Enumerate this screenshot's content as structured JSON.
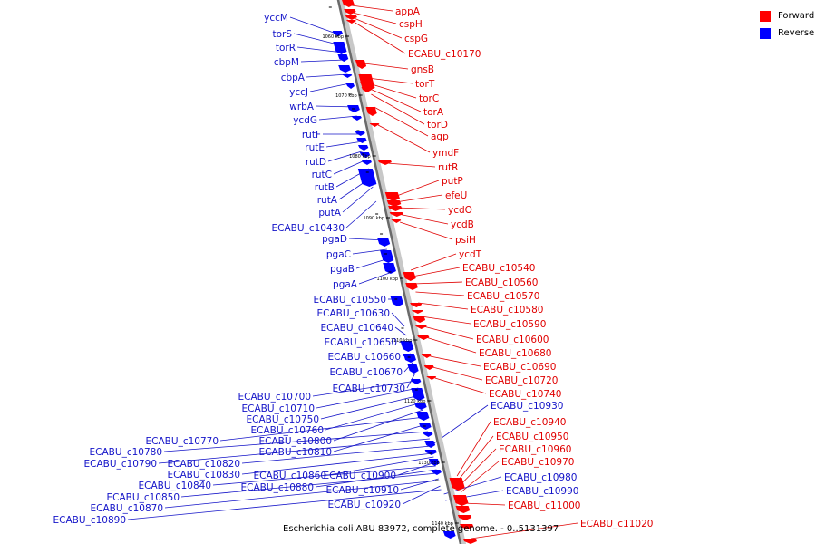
{
  "legend": {
    "forward_label": "Forward",
    "reverse_label": "Reverse",
    "forward_color": "#ff0000",
    "reverse_color": "#0000ff"
  },
  "caption": "Escherichia coli ABU 83972, complete genome. - 0..5131397",
  "kbp_markers": [
    "1060 kbp",
    "1070 kbp",
    "1080 kbp",
    "1090 kbp",
    "1100 kbp",
    "1110 kbp",
    "1120 kbp",
    "1130 kbp",
    "1140 kbp"
  ],
  "forward_genes": [
    "appA",
    "cspH",
    "cspG",
    "ECABU_c10170",
    "gnsB",
    "torT",
    "torC",
    "torA",
    "torD",
    "agp",
    "ymdF",
    "rutR",
    "putP",
    "efeU",
    "ycdO",
    "ycdB",
    "psiH",
    "ycdT",
    "ECABU_c10540",
    "ECABU_c10560",
    "ECABU_c10570",
    "ECABU_c10580",
    "ECABU_c10590",
    "ECABU_c10600",
    "ECABU_c10680",
    "ECABU_c10690",
    "ECABU_c10720",
    "ECABU_c10740",
    "ECABU_c10940",
    "ECABU_c10950",
    "ECABU_c10960",
    "ECABU_c10970",
    "ECABU_c11000",
    "ECABU_c11020"
  ],
  "reverse_genes": [
    "yccM",
    "torS",
    "torR",
    "cbpM",
    "cbpA",
    "yccJ",
    "wrbA",
    "ycdG",
    "rutF",
    "rutE",
    "rutD",
    "rutC",
    "rutB",
    "rutA",
    "putA",
    "ECABU_c10430",
    "pgaD",
    "pgaC",
    "pgaB",
    "pgaA",
    "ECABU_c10550",
    "ECABU_c10630",
    "ECABU_c10640",
    "ECABU_c10650",
    "ECABU_c10660",
    "ECABU_c10670",
    "ECABU_c10730",
    "ECABU_c10700",
    "ECABU_c10710",
    "ECABU_c10750",
    "ECABU_c10760",
    "ECABU_c10800",
    "ECABU_c10770",
    "ECABU_c10810",
    "ECABU_c10780",
    "ECABU_c10790",
    "ECABU_c10820",
    "ECABU_c10830",
    "ECABU_c10860",
    "ECABU_c10900",
    "ECABU_c10840",
    "ECABU_c10880",
    "ECABU_c10850",
    "ECABU_c10910",
    "ECABU_c10870",
    "ECABU_c10920",
    "ECABU_c10890",
    "ECABU_c10930",
    "ECABU_c10980",
    "ECABU_c10990"
  ]
}
